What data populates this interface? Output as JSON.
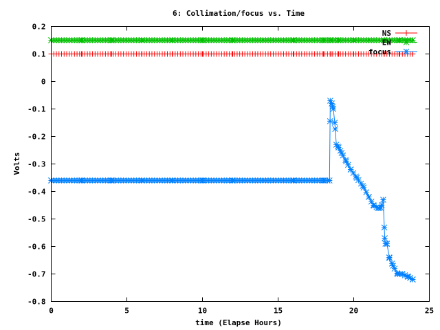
{
  "chart_data": {
    "type": "line",
    "title": "6: Collimation/focus vs. Time",
    "xlabel": "time (Elapse Hours)",
    "ylabel": "Volts",
    "xlim": [
      0,
      25
    ],
    "ylim": [
      -0.8,
      0.2
    ],
    "xticks": [
      0,
      5,
      10,
      15,
      20,
      25
    ],
    "yticks": [
      0.2,
      0.1,
      0,
      -0.1,
      -0.2,
      -0.3,
      -0.4,
      -0.5,
      -0.6,
      -0.7,
      -0.8
    ],
    "grid": false,
    "legend_position": "top-right",
    "series": [
      {
        "name": "NS",
        "color": "#ff0000",
        "marker": "plus",
        "x": [
          0,
          2,
          4,
          6,
          8,
          10,
          12,
          14,
          16,
          18,
          18.5,
          19,
          20,
          21,
          22,
          23,
          23.9
        ],
        "y": [
          0.1,
          0.1,
          0.1,
          0.1,
          0.1,
          0.1,
          0.1,
          0.1,
          0.1,
          0.1,
          0.1,
          0.1,
          0.1,
          0.1,
          0.1,
          0.1,
          0.1
        ]
      },
      {
        "name": "EW",
        "color": "#00c000",
        "marker": "star",
        "x": [
          0,
          2,
          4,
          6,
          8,
          10,
          12,
          14,
          16,
          18,
          18.5,
          19,
          20,
          21,
          22,
          23,
          23.9
        ],
        "y": [
          0.15,
          0.15,
          0.15,
          0.15,
          0.15,
          0.15,
          0.15,
          0.15,
          0.15,
          0.15,
          0.15,
          0.15,
          0.15,
          0.15,
          0.15,
          0.15,
          0.15
        ]
      },
      {
        "name": "focus",
        "color": "#0080ff",
        "marker": "star",
        "x": [
          0,
          2,
          4,
          6,
          8,
          10,
          12,
          14,
          16,
          18,
          18.4,
          18.45,
          18.55,
          18.65,
          18.75,
          18.85,
          19.0,
          19.2,
          19.5,
          19.8,
          20.2,
          20.6,
          21.0,
          21.3,
          21.6,
          21.8,
          21.95,
          22.05,
          22.1,
          22.2,
          22.35,
          22.6,
          22.9,
          23.2,
          23.6,
          23.9
        ],
        "y": [
          -0.36,
          -0.36,
          -0.36,
          -0.36,
          -0.36,
          -0.36,
          -0.36,
          -0.36,
          -0.36,
          -0.36,
          -0.36,
          -0.07,
          -0.08,
          -0.1,
          -0.15,
          -0.23,
          -0.24,
          -0.26,
          -0.29,
          -0.32,
          -0.35,
          -0.38,
          -0.42,
          -0.45,
          -0.46,
          -0.46,
          -0.43,
          -0.57,
          -0.59,
          -0.59,
          -0.64,
          -0.67,
          -0.7,
          -0.7,
          -0.71,
          -0.72
        ]
      }
    ]
  }
}
